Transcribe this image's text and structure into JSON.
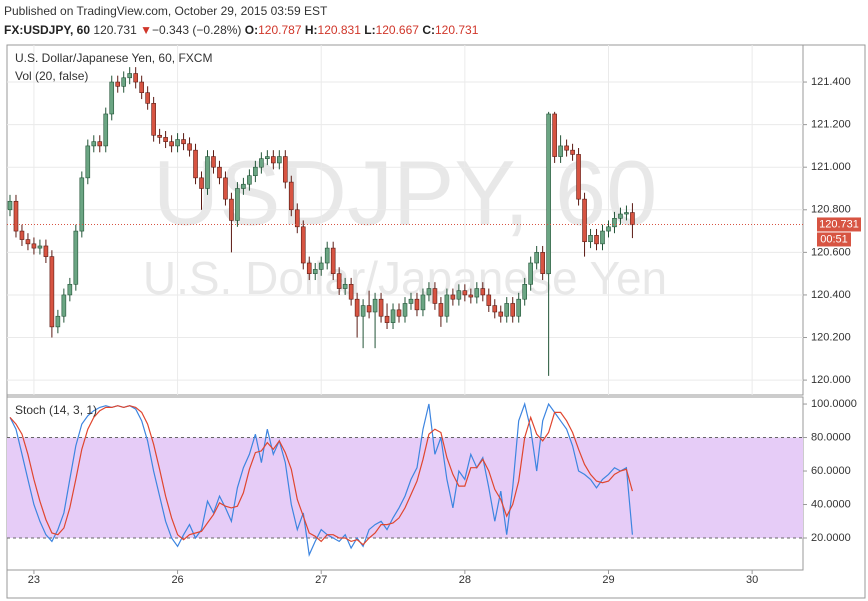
{
  "header": {
    "published": "Published on TradingView.com, October 29, 2015 03:59 EST",
    "symbol": "FX:USDJPY, 60",
    "price": "120.731",
    "arrow": "▼",
    "change": "−0.343 (−0.28%)",
    "open_label": "O:",
    "open": "120.787",
    "high_label": "H:",
    "high": "120.831",
    "low_label": "L:",
    "low": "120.667",
    "close_label": "C:",
    "close": "120.731"
  },
  "chart_data": [
    {
      "type": "candlestick",
      "title": "U.S. Dollar/Japanese Yen, 60, FXCM",
      "subtitle": "Vol (20, false)",
      "watermark": "USDJPY, 60",
      "watermark_sub": "U.S. Dollar/Japanese Yen",
      "up_color": "#6ba583",
      "up_border": "#225437",
      "down_color": "#d75442",
      "down_border": "#5b1a13",
      "x": [
        -4,
        -3,
        -2,
        -1,
        0,
        1,
        2,
        3,
        4,
        5,
        6,
        7,
        8,
        9,
        10,
        11,
        12,
        13,
        14,
        15,
        16,
        17,
        18,
        19,
        20,
        21,
        22,
        23,
        24,
        25,
        26,
        27,
        28,
        29,
        30,
        31,
        32,
        33,
        34,
        35,
        36,
        37,
        38,
        39,
        40,
        41,
        42,
        43,
        44,
        45,
        46,
        47,
        48,
        49,
        50,
        51,
        52,
        53,
        54,
        55,
        56,
        57,
        58,
        59,
        60,
        61,
        62,
        63,
        64,
        65,
        66,
        67,
        68,
        69,
        70,
        71,
        72,
        73,
        74,
        75,
        76,
        77,
        78,
        79,
        80,
        81,
        82,
        83,
        84,
        85,
        86,
        87,
        88,
        89,
        90,
        91,
        92,
        93,
        94,
        95,
        96,
        97,
        98,
        99,
        100
      ],
      "open": [
        120.8,
        120.84,
        120.7,
        120.66,
        120.64,
        120.62,
        120.63,
        120.58,
        120.25,
        120.3,
        120.4,
        120.45,
        120.7,
        120.95,
        121.1,
        121.12,
        121.1,
        121.25,
        121.4,
        121.38,
        121.42,
        121.44,
        121.4,
        121.35,
        121.3,
        121.15,
        121.14,
        121.12,
        121.1,
        121.13,
        121.11,
        121.08,
        120.95,
        120.9,
        121.05,
        121.0,
        120.95,
        120.85,
        120.75,
        120.9,
        120.92,
        120.96,
        121.0,
        121.04,
        121.05,
        121.02,
        121.05,
        120.93,
        120.8,
        120.72,
        120.55,
        120.5,
        120.52,
        120.55,
        120.62,
        120.5,
        120.43,
        120.45,
        120.38,
        120.3,
        120.35,
        120.32,
        120.38,
        120.3,
        120.27,
        120.33,
        120.3,
        120.36,
        120.38,
        120.33,
        120.4,
        120.43,
        120.36,
        120.3,
        120.4,
        120.38,
        120.42,
        120.4,
        120.39,
        120.43,
        120.4,
        120.35,
        120.32,
        120.3,
        120.36,
        120.3,
        120.38,
        120.45,
        120.55,
        120.6,
        120.5,
        121.25,
        121.05,
        121.1,
        121.08,
        121.06,
        120.85,
        120.65,
        120.68,
        120.64,
        120.7,
        120.72,
        120.76,
        120.78,
        120.787
      ],
      "high": [
        120.87,
        120.87,
        120.73,
        120.69,
        120.67,
        120.66,
        120.66,
        120.61,
        120.33,
        120.43,
        120.48,
        120.73,
        120.98,
        121.13,
        121.15,
        121.15,
        121.28,
        121.43,
        121.43,
        121.45,
        121.47,
        121.47,
        121.43,
        121.38,
        121.33,
        121.18,
        121.17,
        121.15,
        121.16,
        121.16,
        121.14,
        121.11,
        120.98,
        121.08,
        121.08,
        121.03,
        120.98,
        120.88,
        120.93,
        120.95,
        120.99,
        121.03,
        121.07,
        121.08,
        121.08,
        121.08,
        121.08,
        120.96,
        120.83,
        120.75,
        120.58,
        120.55,
        120.58,
        120.65,
        120.65,
        120.53,
        120.48,
        120.48,
        120.41,
        120.38,
        120.42,
        120.41,
        120.41,
        120.36,
        120.36,
        120.36,
        120.39,
        120.41,
        120.41,
        120.43,
        120.46,
        120.46,
        120.39,
        120.43,
        120.43,
        120.45,
        120.45,
        120.43,
        120.46,
        120.46,
        120.43,
        120.38,
        120.35,
        120.39,
        120.39,
        120.41,
        120.48,
        120.58,
        120.63,
        120.63,
        121.26,
        121.26,
        121.15,
        121.13,
        121.11,
        121.09,
        120.88,
        120.71,
        120.71,
        120.73,
        120.75,
        120.79,
        120.81,
        120.82,
        120.831
      ],
      "low": [
        120.77,
        120.67,
        120.63,
        120.61,
        120.59,
        120.59,
        120.55,
        120.2,
        120.22,
        120.27,
        120.37,
        120.42,
        120.67,
        120.92,
        121.07,
        121.07,
        121.07,
        121.22,
        121.35,
        121.35,
        121.39,
        121.37,
        121.32,
        121.27,
        121.12,
        121.11,
        121.09,
        121.07,
        121.07,
        121.08,
        121.05,
        120.92,
        120.8,
        120.87,
        120.97,
        120.92,
        120.82,
        120.6,
        120.72,
        120.87,
        120.89,
        120.93,
        120.97,
        121.01,
        120.99,
        120.99,
        120.9,
        120.77,
        120.69,
        120.52,
        120.47,
        120.47,
        120.49,
        120.52,
        120.47,
        120.4,
        120.4,
        120.35,
        120.2,
        120.15,
        120.29,
        120.15,
        120.27,
        120.24,
        120.24,
        120.27,
        120.27,
        120.33,
        120.3,
        120.3,
        120.37,
        120.33,
        120.25,
        120.27,
        120.35,
        120.35,
        120.37,
        120.36,
        120.36,
        120.37,
        120.32,
        120.29,
        120.27,
        120.27,
        120.27,
        120.27,
        120.35,
        120.42,
        120.52,
        120.47,
        120.02,
        121.02,
        121.02,
        121.05,
        121.03,
        120.82,
        120.58,
        120.62,
        120.61,
        120.61,
        120.67,
        120.69,
        120.73,
        120.75,
        120.667
      ],
      "close": [
        120.84,
        120.7,
        120.66,
        120.64,
        120.62,
        120.63,
        120.58,
        120.25,
        120.3,
        120.4,
        120.45,
        120.7,
        120.95,
        121.1,
        121.12,
        121.1,
        121.25,
        121.4,
        121.38,
        121.42,
        121.44,
        121.4,
        121.35,
        121.3,
        121.15,
        121.14,
        121.12,
        121.1,
        121.13,
        121.11,
        121.08,
        120.95,
        120.9,
        121.05,
        121.0,
        120.95,
        120.85,
        120.75,
        120.9,
        120.92,
        120.96,
        121.0,
        121.04,
        121.05,
        121.02,
        121.05,
        120.93,
        120.8,
        120.72,
        120.55,
        120.5,
        120.52,
        120.55,
        120.62,
        120.5,
        120.43,
        120.45,
        120.38,
        120.3,
        120.35,
        120.32,
        120.38,
        120.3,
        120.27,
        120.33,
        120.3,
        120.36,
        120.38,
        120.33,
        120.4,
        120.43,
        120.36,
        120.3,
        120.4,
        120.38,
        120.42,
        120.4,
        120.39,
        120.43,
        120.4,
        120.35,
        120.32,
        120.3,
        120.36,
        120.3,
        120.38,
        120.45,
        120.55,
        120.6,
        120.5,
        121.25,
        121.05,
        121.1,
        121.08,
        121.06,
        120.85,
        120.65,
        120.68,
        120.64,
        120.7,
        120.72,
        120.76,
        120.78,
        120.787,
        120.731
      ],
      "xlim": [
        -4.5,
        128.5
      ],
      "ylim": [
        119.93,
        121.574
      ],
      "yticks": [
        {
          "value": 120.0,
          "label": "120.000"
        },
        {
          "value": 120.2,
          "label": "120.200"
        },
        {
          "value": 120.4,
          "label": "120.400"
        },
        {
          "value": 120.6,
          "label": "120.600"
        },
        {
          "value": 120.8,
          "label": "120.800"
        },
        {
          "value": 121.0,
          "label": "121.000"
        },
        {
          "value": 121.2,
          "label": "121.200"
        },
        {
          "value": 121.4,
          "label": "121.400"
        }
      ],
      "last_price": 120.731,
      "last_price_label": "120.731",
      "countdown": "00:51",
      "grid": true
    },
    {
      "type": "line",
      "title": "Stoch (14, 3, 1)",
      "x": [
        -4,
        -3,
        -2,
        -1,
        0,
        1,
        2,
        3,
        4,
        5,
        6,
        7,
        8,
        9,
        10,
        11,
        12,
        13,
        14,
        15,
        16,
        17,
        18,
        19,
        20,
        21,
        22,
        23,
        24,
        25,
        26,
        27,
        28,
        29,
        30,
        31,
        32,
        33,
        34,
        35,
        36,
        37,
        38,
        39,
        40,
        41,
        42,
        43,
        44,
        45,
        46,
        47,
        48,
        49,
        50,
        51,
        52,
        53,
        54,
        55,
        56,
        57,
        58,
        59,
        60,
        61,
        62,
        63,
        64,
        65,
        66,
        67,
        68,
        69,
        70,
        71,
        72,
        73,
        74,
        75,
        76,
        77,
        78,
        79,
        80,
        81,
        82,
        83,
        84,
        85,
        86,
        87,
        88,
        89,
        90,
        91,
        92,
        93,
        94,
        95,
        96,
        97,
        98,
        99,
        100
      ],
      "series": [
        {
          "color": "#3d85e0",
          "values": [
            92,
            85,
            70,
            55,
            40,
            30,
            22,
            18,
            25,
            35,
            55,
            75,
            88,
            93,
            96,
            98,
            99,
            98,
            99,
            98,
            99,
            97,
            90,
            78,
            60,
            45,
            30,
            20,
            15,
            22,
            28,
            20,
            25,
            42,
            35,
            45,
            38,
            30,
            50,
            62,
            70,
            82,
            65,
            85,
            70,
            78,
            65,
            40,
            25,
            35,
            10,
            18,
            25,
            22,
            20,
            18,
            22,
            14,
            20,
            15,
            25,
            28,
            30,
            25,
            32,
            38,
            45,
            55,
            62,
            85,
            100,
            70,
            80,
            55,
            38,
            60,
            55,
            70,
            62,
            68,
            50,
            30,
            48,
            22,
            50,
            90,
            100,
            85,
            60,
            90,
            100,
            95,
            90,
            85,
            75,
            60,
            58,
            55,
            50,
            55,
            58,
            62,
            60,
            62,
            22
          ]
        },
        {
          "color": "#e0462f",
          "values": [
            92,
            88,
            82,
            70,
            55,
            42,
            31,
            23,
            22,
            26,
            38,
            55,
            73,
            85,
            92,
            96,
            98,
            98,
            99,
            98,
            99,
            98,
            95,
            88,
            76,
            61,
            45,
            32,
            22,
            19,
            22,
            23,
            24,
            29,
            34,
            41,
            39,
            38,
            39,
            47,
            61,
            71,
            72,
            77,
            73,
            78,
            71,
            61,
            43,
            33,
            23,
            21,
            18,
            22,
            22,
            20,
            20,
            18,
            19,
            16,
            20,
            23,
            28,
            28,
            29,
            32,
            38,
            46,
            54,
            67,
            82,
            85,
            83,
            68,
            58,
            51,
            51,
            62,
            62,
            67,
            60,
            49,
            43,
            33,
            40,
            54,
            80,
            92,
            82,
            78,
            83,
            95,
            95,
            90,
            83,
            73,
            64,
            58,
            54,
            53,
            54,
            58,
            60,
            61,
            48
          ]
        }
      ],
      "band": [
        20,
        80
      ],
      "band_color": "#e6ccf7",
      "xlim": [
        -4.5,
        128.5
      ],
      "ylim": [
        0.9,
        104.2
      ],
      "xticks": [
        {
          "value": 0,
          "label": "23"
        },
        {
          "value": 24,
          "label": "26"
        },
        {
          "value": 48,
          "label": "27"
        },
        {
          "value": 72,
          "label": "28"
        },
        {
          "value": 96,
          "label": "29"
        },
        {
          "value": 120,
          "label": "30"
        }
      ],
      "yticks": [
        {
          "value": 20,
          "label": "20.0000"
        },
        {
          "value": 40,
          "label": "40.0000"
        },
        {
          "value": 60,
          "label": "60.0000"
        },
        {
          "value": 80,
          "label": "80.0000"
        },
        {
          "value": 100,
          "label": "100.0000"
        }
      ],
      "grid": false
    }
  ]
}
